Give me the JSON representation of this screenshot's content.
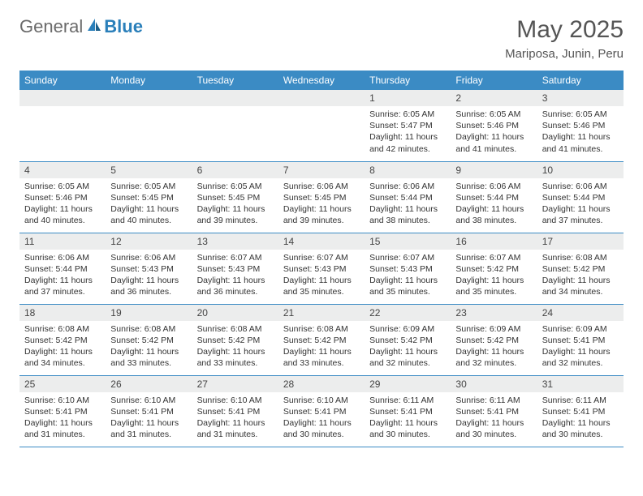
{
  "brand": {
    "general": "General",
    "blue": "Blue"
  },
  "title": "May 2025",
  "location": "Mariposa, Junin, Peru",
  "colors": {
    "header_bg": "#3b8bc4",
    "header_text": "#ffffff",
    "daynum_bg": "#eceded",
    "border": "#3b8bc4",
    "logo_general": "#6b6b6b",
    "logo_blue": "#2a7fba"
  },
  "day_headers": [
    "Sunday",
    "Monday",
    "Tuesday",
    "Wednesday",
    "Thursday",
    "Friday",
    "Saturday"
  ],
  "weeks": [
    [
      null,
      null,
      null,
      null,
      {
        "n": "1",
        "sr": "6:05 AM",
        "ss": "5:47 PM",
        "dl": "11 hours and 42 minutes."
      },
      {
        "n": "2",
        "sr": "6:05 AM",
        "ss": "5:46 PM",
        "dl": "11 hours and 41 minutes."
      },
      {
        "n": "3",
        "sr": "6:05 AM",
        "ss": "5:46 PM",
        "dl": "11 hours and 41 minutes."
      }
    ],
    [
      {
        "n": "4",
        "sr": "6:05 AM",
        "ss": "5:46 PM",
        "dl": "11 hours and 40 minutes."
      },
      {
        "n": "5",
        "sr": "6:05 AM",
        "ss": "5:45 PM",
        "dl": "11 hours and 40 minutes."
      },
      {
        "n": "6",
        "sr": "6:05 AM",
        "ss": "5:45 PM",
        "dl": "11 hours and 39 minutes."
      },
      {
        "n": "7",
        "sr": "6:06 AM",
        "ss": "5:45 PM",
        "dl": "11 hours and 39 minutes."
      },
      {
        "n": "8",
        "sr": "6:06 AM",
        "ss": "5:44 PM",
        "dl": "11 hours and 38 minutes."
      },
      {
        "n": "9",
        "sr": "6:06 AM",
        "ss": "5:44 PM",
        "dl": "11 hours and 38 minutes."
      },
      {
        "n": "10",
        "sr": "6:06 AM",
        "ss": "5:44 PM",
        "dl": "11 hours and 37 minutes."
      }
    ],
    [
      {
        "n": "11",
        "sr": "6:06 AM",
        "ss": "5:44 PM",
        "dl": "11 hours and 37 minutes."
      },
      {
        "n": "12",
        "sr": "6:06 AM",
        "ss": "5:43 PM",
        "dl": "11 hours and 36 minutes."
      },
      {
        "n": "13",
        "sr": "6:07 AM",
        "ss": "5:43 PM",
        "dl": "11 hours and 36 minutes."
      },
      {
        "n": "14",
        "sr": "6:07 AM",
        "ss": "5:43 PM",
        "dl": "11 hours and 35 minutes."
      },
      {
        "n": "15",
        "sr": "6:07 AM",
        "ss": "5:43 PM",
        "dl": "11 hours and 35 minutes."
      },
      {
        "n": "16",
        "sr": "6:07 AM",
        "ss": "5:42 PM",
        "dl": "11 hours and 35 minutes."
      },
      {
        "n": "17",
        "sr": "6:08 AM",
        "ss": "5:42 PM",
        "dl": "11 hours and 34 minutes."
      }
    ],
    [
      {
        "n": "18",
        "sr": "6:08 AM",
        "ss": "5:42 PM",
        "dl": "11 hours and 34 minutes."
      },
      {
        "n": "19",
        "sr": "6:08 AM",
        "ss": "5:42 PM",
        "dl": "11 hours and 33 minutes."
      },
      {
        "n": "20",
        "sr": "6:08 AM",
        "ss": "5:42 PM",
        "dl": "11 hours and 33 minutes."
      },
      {
        "n": "21",
        "sr": "6:08 AM",
        "ss": "5:42 PM",
        "dl": "11 hours and 33 minutes."
      },
      {
        "n": "22",
        "sr": "6:09 AM",
        "ss": "5:42 PM",
        "dl": "11 hours and 32 minutes."
      },
      {
        "n": "23",
        "sr": "6:09 AM",
        "ss": "5:42 PM",
        "dl": "11 hours and 32 minutes."
      },
      {
        "n": "24",
        "sr": "6:09 AM",
        "ss": "5:41 PM",
        "dl": "11 hours and 32 minutes."
      }
    ],
    [
      {
        "n": "25",
        "sr": "6:10 AM",
        "ss": "5:41 PM",
        "dl": "11 hours and 31 minutes."
      },
      {
        "n": "26",
        "sr": "6:10 AM",
        "ss": "5:41 PM",
        "dl": "11 hours and 31 minutes."
      },
      {
        "n": "27",
        "sr": "6:10 AM",
        "ss": "5:41 PM",
        "dl": "11 hours and 31 minutes."
      },
      {
        "n": "28",
        "sr": "6:10 AM",
        "ss": "5:41 PM",
        "dl": "11 hours and 30 minutes."
      },
      {
        "n": "29",
        "sr": "6:11 AM",
        "ss": "5:41 PM",
        "dl": "11 hours and 30 minutes."
      },
      {
        "n": "30",
        "sr": "6:11 AM",
        "ss": "5:41 PM",
        "dl": "11 hours and 30 minutes."
      },
      {
        "n": "31",
        "sr": "6:11 AM",
        "ss": "5:41 PM",
        "dl": "11 hours and 30 minutes."
      }
    ]
  ],
  "labels": {
    "sunrise": "Sunrise:",
    "sunset": "Sunset:",
    "daylight": "Daylight:"
  }
}
